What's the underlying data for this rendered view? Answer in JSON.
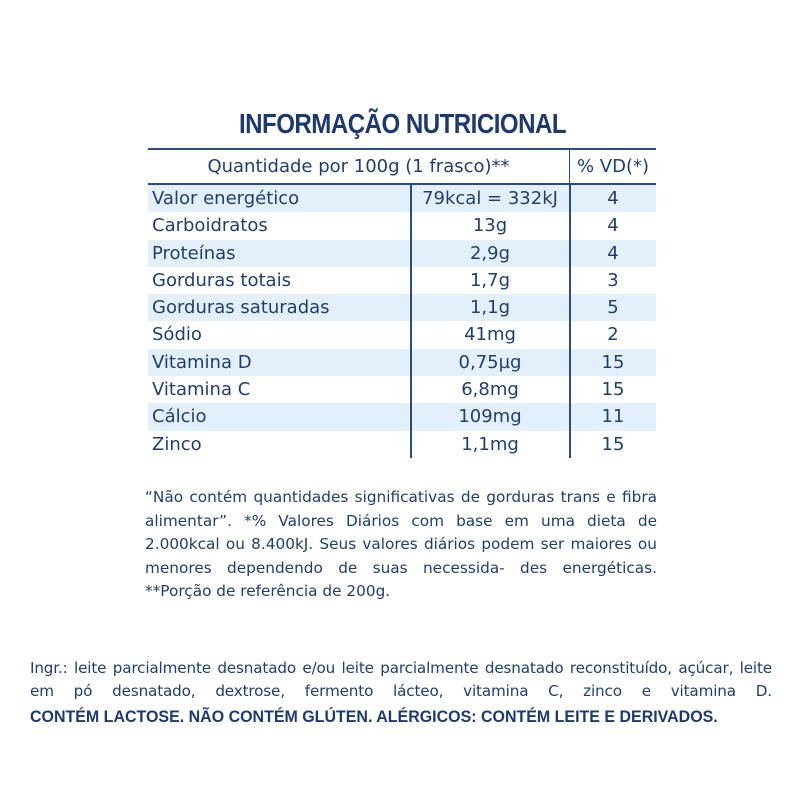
{
  "title": "INFORMAÇÃO NUTRICIONAL",
  "header": {
    "quantity": "Quantidade por 100g (1 frasco)**",
    "vd": "% VD(*)"
  },
  "rows": [
    {
      "name": "Valor energético",
      "qty": "79kcal = 332kJ",
      "vd": "4"
    },
    {
      "name": "Carboidratos",
      "qty": "13g",
      "vd": "4"
    },
    {
      "name": "Proteínas",
      "qty": "2,9g",
      "vd": "4"
    },
    {
      "name": "Gorduras totais",
      "qty": "1,7g",
      "vd": "3"
    },
    {
      "name": "Gorduras saturadas",
      "qty": "1,1g",
      "vd": "5"
    },
    {
      "name": "Sódio",
      "qty": "41mg",
      "vd": "2"
    },
    {
      "name": "Vitamina D",
      "qty": "0,75µg",
      "vd": "15"
    },
    {
      "name": "Vitamina C",
      "qty": "6,8mg",
      "vd": "15"
    },
    {
      "name": "Cálcio",
      "qty": "109mg",
      "vd": "11"
    },
    {
      "name": "Zinco",
      "qty": "1,1mg",
      "vd": "15"
    }
  ],
  "footnote": "“Não contém quantidades significativas de gorduras trans e fibra alimentar”. *% Valores Diários com base em uma dieta de 2.000kcal ou 8.400kJ. Seus valores diários podem ser maiores ou menores dependendo de suas necessida- des energéticas. **Porção de referência de 200g.",
  "ingredients": "Ingr.: leite parcialmente desnatado e/ou leite parcialmente desnatado reconstituído, açúcar, leite em pó desnatado, dextrose, fermento lácteo, vitamina C, zinco e vitamina D.",
  "allergens": "CONTÉM LACTOSE. NÃO CONTÉM GLÚTEN. ALÉRGICOS: CONTÉM LEITE E DERIVADOS.",
  "colors": {
    "text": "#1f3f6e",
    "shade": "#e4f0f9",
    "rule": "#2a4d7c"
  }
}
